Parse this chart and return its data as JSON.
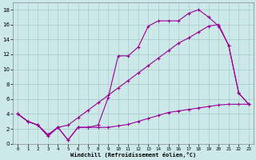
{
  "background_color": "#cce8e8",
  "grid_color": "#aacccc",
  "line_color": "#990099",
  "xlim": [
    -0.5,
    23.5
  ],
  "ylim": [
    0,
    19
  ],
  "xticks": [
    0,
    1,
    2,
    3,
    4,
    5,
    6,
    7,
    8,
    9,
    10,
    11,
    12,
    13,
    14,
    15,
    16,
    17,
    18,
    19,
    20,
    21,
    22,
    23
  ],
  "yticks": [
    0,
    2,
    4,
    6,
    8,
    10,
    12,
    14,
    16,
    18
  ],
  "xlabel": "Windchill (Refroidissement éolien,°C)",
  "curve_upper_x": [
    0,
    1,
    2,
    3,
    4,
    5,
    6,
    7,
    8,
    9,
    10,
    11,
    12,
    13,
    14,
    15,
    16,
    17,
    18,
    19,
    20,
    21,
    22,
    23
  ],
  "curve_upper_y": [
    4.0,
    3.0,
    2.5,
    1.0,
    2.2,
    0.5,
    2.2,
    2.2,
    2.5,
    6.2,
    11.8,
    11.8,
    13.0,
    15.8,
    16.5,
    16.5,
    16.5,
    17.5,
    18.0,
    17.0,
    15.8,
    13.2,
    6.8,
    5.3
  ],
  "curve_mid_x": [
    0,
    1,
    2,
    3,
    4,
    5,
    6,
    7,
    8,
    9,
    10,
    11,
    12,
    13,
    14,
    15,
    16,
    17,
    18,
    19,
    20,
    21,
    22,
    23
  ],
  "curve_mid_y": [
    4.0,
    3.0,
    2.5,
    1.2,
    2.2,
    2.5,
    3.5,
    4.5,
    5.5,
    6.5,
    7.5,
    8.5,
    9.5,
    10.5,
    11.5,
    12.5,
    13.5,
    14.2,
    15.0,
    15.8,
    16.0,
    13.2,
    6.8,
    5.3
  ],
  "curve_low_x": [
    0,
    1,
    2,
    3,
    4,
    5,
    6,
    7,
    8,
    9,
    10,
    11,
    12,
    13,
    14,
    15,
    16,
    17,
    18,
    19,
    20,
    21,
    22,
    23
  ],
  "curve_low_y": [
    4.0,
    3.0,
    2.5,
    1.2,
    2.2,
    0.5,
    2.2,
    2.2,
    2.2,
    2.2,
    2.4,
    2.6,
    3.0,
    3.4,
    3.8,
    4.2,
    4.4,
    4.6,
    4.8,
    5.0,
    5.2,
    5.3,
    5.3,
    5.3
  ]
}
